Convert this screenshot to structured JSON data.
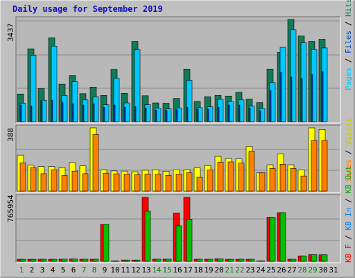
{
  "title": "Daily usage for September 2019",
  "colors": {
    "background": "#c0c0c0",
    "panel": "#b8b8b8",
    "grid": "#8a8a8a",
    "title": "#1010c0",
    "hits": "#127a55",
    "files": "#00c8ff",
    "pages": "#0044cc",
    "visits": "#ffff00",
    "sites": "#ff8000",
    "kbf": "#ff0000",
    "kbin": "#0080ff",
    "kbout": "#00c000",
    "weekday_tick": "#000000",
    "weekend_tick": "#008000"
  },
  "chart_data": [
    {
      "type": "bar",
      "panel": "hits-files-pages",
      "ymax_label": "3437",
      "ylim": [
        0,
        3437
      ],
      "legend_side": "right",
      "legend_text": [
        "Pages",
        " / ",
        "Files",
        " / ",
        "Hits"
      ],
      "categories": [
        "1",
        "2",
        "3",
        "4",
        "5",
        "6",
        "7",
        "8",
        "9",
        "10",
        "11",
        "12",
        "13",
        "14",
        "15",
        "16",
        "17",
        "18",
        "19",
        "20",
        "21",
        "22",
        "23",
        "24",
        "25",
        "26",
        "27",
        "28",
        "29",
        "30",
        "31"
      ],
      "series": [
        {
          "name": "Hits",
          "values": [
            930,
            2450,
            1110,
            2820,
            1260,
            1550,
            940,
            1160,
            880,
            1760,
            950,
            2700,
            870,
            630,
            620,
            780,
            1770,
            680,
            840,
            880,
            860,
            990,
            760,
            640,
            1770,
            2330,
            3437,
            2880,
            2700,
            2770,
            0
          ]
        },
        {
          "name": "Files",
          "values": [
            620,
            2230,
            720,
            2540,
            880,
            1340,
            730,
            840,
            570,
            1460,
            630,
            2420,
            570,
            450,
            430,
            460,
            1390,
            470,
            500,
            750,
            670,
            730,
            520,
            440,
            1320,
            2500,
            3090,
            2650,
            2420,
            2480,
            0
          ]
        },
        {
          "name": "Pages",
          "values": [
            560,
            520,
            680,
            720,
            640,
            600,
            560,
            600,
            480,
            560,
            480,
            500,
            460,
            390,
            380,
            400,
            480,
            420,
            420,
            480,
            560,
            560,
            460,
            370,
            1040,
            1650,
            1500,
            1450,
            1580,
            1680,
            0
          ]
        }
      ]
    },
    {
      "type": "bar",
      "panel": "visits-sites",
      "ymax_label": "388",
      "ylim": [
        0,
        388
      ],
      "legend_side": "right",
      "legend_text": [
        "Sites",
        " / ",
        "Visits"
      ],
      "categories": [
        "1",
        "2",
        "3",
        "4",
        "5",
        "6",
        "7",
        "8",
        "9",
        "10",
        "11",
        "12",
        "13",
        "14",
        "15",
        "16",
        "17",
        "18",
        "19",
        "20",
        "21",
        "22",
        "23",
        "24",
        "25",
        "26",
        "27",
        "28",
        "29",
        "30",
        "31"
      ],
      "series": [
        {
          "name": "Visits",
          "values": [
            221,
            159,
            151,
            151,
            144,
            175,
            155,
            388,
            130,
            124,
            123,
            119,
            128,
            131,
            122,
            131,
            132,
            142,
            157,
            213,
            200,
            198,
            275,
            112,
            162,
            228,
            162,
            130,
            388,
            378,
            0
          ]
        },
        {
          "name": "Sites",
          "values": [
            174,
            144,
            107,
            131,
            96,
            123,
            107,
            348,
            110,
            106,
            105,
            102,
            105,
            104,
            97,
            105,
            113,
            85,
            129,
            178,
            179,
            172,
            245,
            113,
            139,
            165,
            139,
            93,
            310,
            311,
            0
          ]
        }
      ]
    },
    {
      "type": "bar",
      "panel": "kbytes",
      "ymax_label": "765954",
      "ylim": [
        0,
        765954
      ],
      "legend_side": "right",
      "legend_text": [
        "KB F",
        " / ",
        "KB In",
        " / ",
        "KB Out"
      ],
      "categories": [
        "1",
        "2",
        "3",
        "4",
        "5",
        "6",
        "7",
        "8",
        "9",
        "10",
        "11",
        "12",
        "13",
        "14",
        "15",
        "16",
        "17",
        "18",
        "19",
        "20",
        "21",
        "22",
        "23",
        "24",
        "25",
        "26",
        "27",
        "28",
        "29",
        "30",
        "31"
      ],
      "series": [
        {
          "name": "KB F",
          "values": [
            24000,
            24000,
            25000,
            24000,
            26000,
            28000,
            25000,
            25000,
            443000,
            5000,
            15000,
            15000,
            765954,
            25000,
            26000,
            578000,
            765954,
            25000,
            25000,
            31000,
            24000,
            25000,
            25000,
            6000,
            528000,
            583000,
            25000,
            65000,
            80000,
            78000,
            0
          ]
        },
        {
          "name": "KB In",
          "values": [
            0,
            0,
            0,
            0,
            0,
            0,
            0,
            0,
            0,
            0,
            0,
            0,
            0,
            0,
            0,
            0,
            0,
            0,
            0,
            0,
            0,
            0,
            0,
            0,
            0,
            0,
            0,
            0,
            0,
            0,
            0
          ]
        },
        {
          "name": "KB Out",
          "values": [
            24000,
            24000,
            25000,
            24000,
            26000,
            28000,
            25000,
            25000,
            443000,
            5000,
            15000,
            15000,
            600000,
            25000,
            26000,
            425000,
            503000,
            25000,
            25000,
            31000,
            24000,
            25000,
            25000,
            6000,
            528000,
            583000,
            25000,
            65000,
            80000,
            78000,
            0
          ]
        }
      ]
    }
  ],
  "x_labels": [
    "1",
    "2",
    "3",
    "4",
    "5",
    "6",
    "7",
    "8",
    "9",
    "10",
    "11",
    "12",
    "13",
    "14",
    "15",
    "16",
    "17",
    "18",
    "19",
    "20",
    "21",
    "22",
    "23",
    "24",
    "25",
    "26",
    "27",
    "28",
    "29",
    "30",
    "31"
  ],
  "weekend_days": [
    "1",
    "7",
    "8",
    "14",
    "15",
    "21",
    "22",
    "28",
    "29"
  ]
}
